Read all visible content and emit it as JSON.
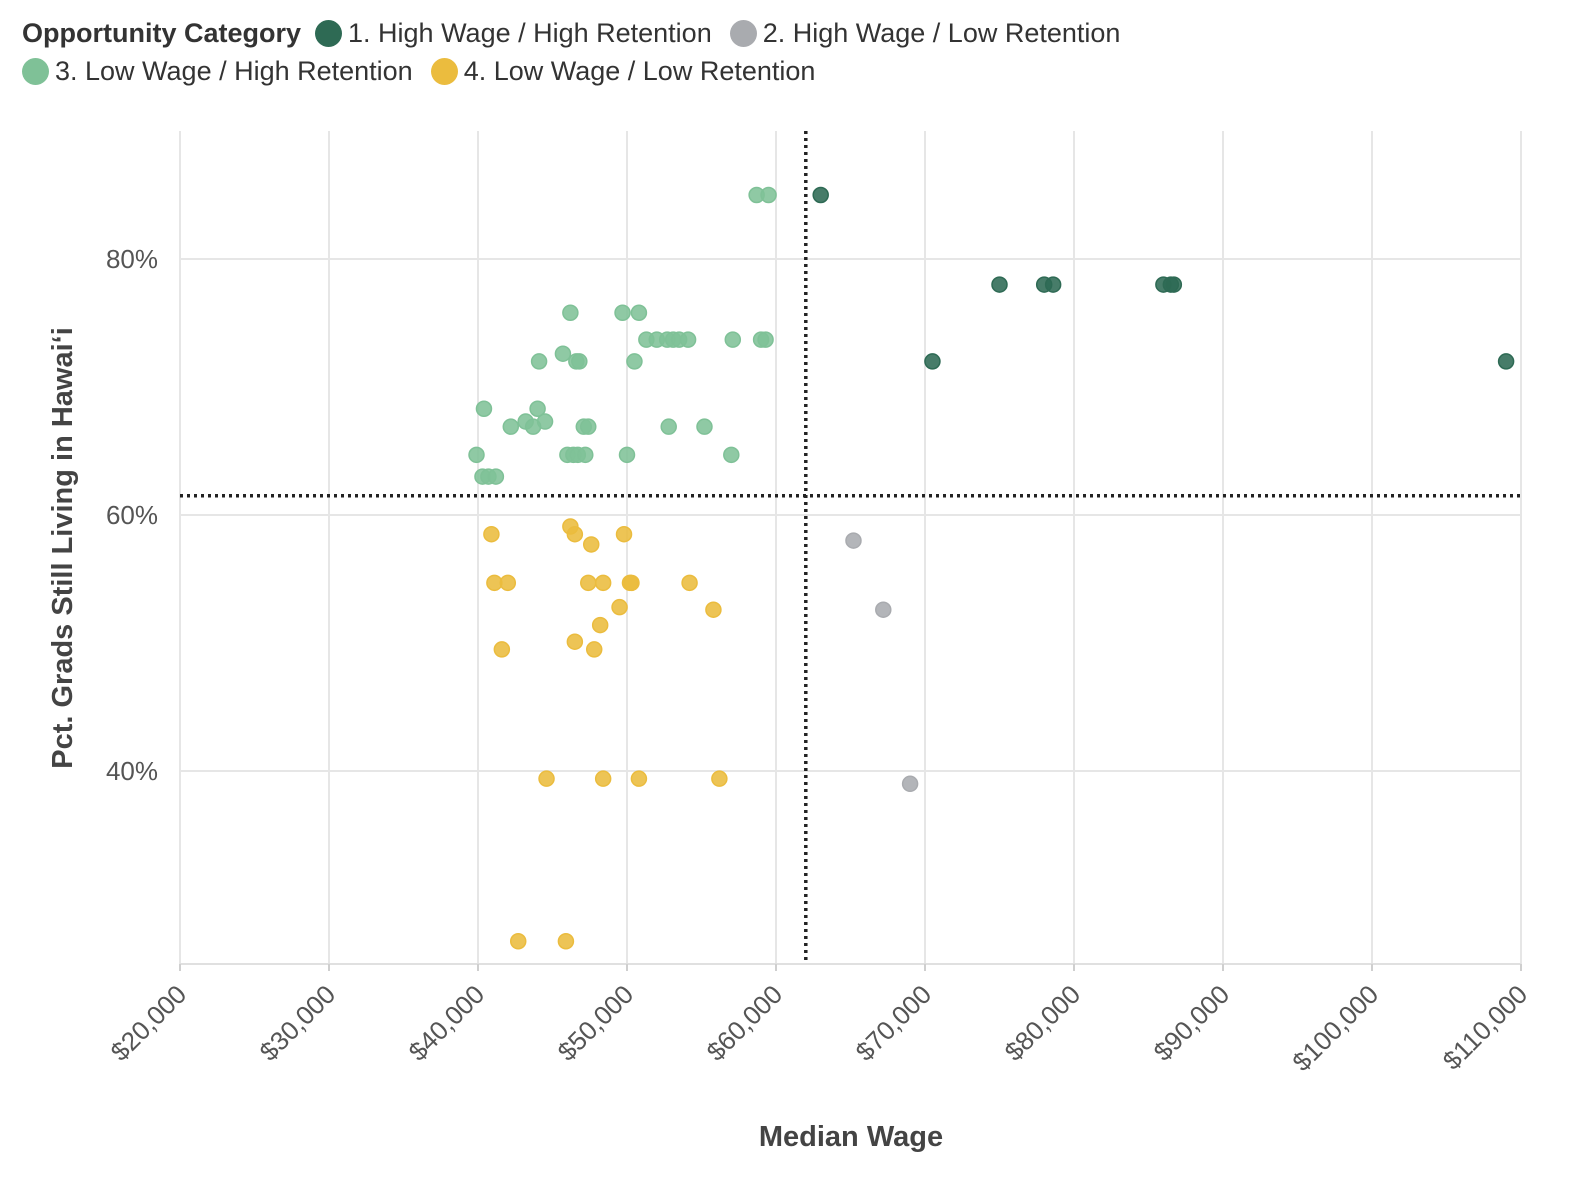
{
  "legend": {
    "title": "Opportunity Category",
    "items": [
      {
        "label": "1. High Wage / High Retention",
        "color": "#2e6a54"
      },
      {
        "label": "2. High Wage / Low Retention",
        "color": "#a9abaf"
      },
      {
        "label": "3. Low Wage / High Retention",
        "color": "#7fc197"
      },
      {
        "label": "4. Low Wage / Low Retention",
        "color": "#ebbc3e"
      }
    ]
  },
  "chart_data": {
    "type": "scatter",
    "xlabel": "Median Wage",
    "ylabel": "Pct. Grads Still Living in Hawaiʻi",
    "xlim": [
      20000,
      110000
    ],
    "ylim": [
      25,
      90
    ],
    "x_ticks": [
      "$20,000",
      "$30,000",
      "$40,000",
      "$50,000",
      "$60,000",
      "$70,000",
      "$80,000",
      "$90,000",
      "$100,000",
      "$110,000"
    ],
    "x_tick_values": [
      20000,
      30000,
      40000,
      50000,
      60000,
      70000,
      80000,
      90000,
      100000,
      110000
    ],
    "y_ticks": [
      "40%",
      "60%",
      "80%"
    ],
    "y_tick_values": [
      40,
      60,
      80
    ],
    "reference_lines": {
      "x": 62000,
      "y": 61.5
    },
    "grid": true,
    "legend_position": "top",
    "series": [
      {
        "name": "1. High Wage / High Retention",
        "color": "#2e6a54",
        "points": [
          [
            63000,
            85
          ],
          [
            75000,
            78
          ],
          [
            78000,
            78
          ],
          [
            78600,
            78
          ],
          [
            86000,
            78
          ],
          [
            86500,
            78
          ],
          [
            86700,
            78
          ],
          [
            70500,
            72
          ],
          [
            109000,
            72
          ]
        ]
      },
      {
        "name": "2. High Wage / Low Retention",
        "color": "#a9abaf",
        "points": [
          [
            65200,
            58
          ],
          [
            67200,
            52.6
          ],
          [
            69000,
            39
          ]
        ]
      },
      {
        "name": "3. Low Wage / High Retention",
        "color": "#7fc197",
        "points": [
          [
            58700,
            85
          ],
          [
            59500,
            85
          ],
          [
            46200,
            75.8
          ],
          [
            49700,
            75.8
          ],
          [
            50800,
            75.8
          ],
          [
            51300,
            73.7
          ],
          [
            52000,
            73.7
          ],
          [
            52700,
            73.7
          ],
          [
            53100,
            73.7
          ],
          [
            53500,
            73.7
          ],
          [
            54100,
            73.7
          ],
          [
            57100,
            73.7
          ],
          [
            59000,
            73.7
          ],
          [
            59300,
            73.7
          ],
          [
            45700,
            72.6
          ],
          [
            44100,
            72
          ],
          [
            46600,
            72
          ],
          [
            46800,
            72
          ],
          [
            50500,
            72
          ],
          [
            40400,
            68.3
          ],
          [
            44000,
            68.3
          ],
          [
            43200,
            67.3
          ],
          [
            44500,
            67.3
          ],
          [
            42200,
            66.9
          ],
          [
            43700,
            66.9
          ],
          [
            47100,
            66.9
          ],
          [
            47400,
            66.9
          ],
          [
            52800,
            66.9
          ],
          [
            55200,
            66.9
          ],
          [
            39900,
            64.7
          ],
          [
            46000,
            64.7
          ],
          [
            46400,
            64.7
          ],
          [
            46700,
            64.7
          ],
          [
            47200,
            64.7
          ],
          [
            50000,
            64.7
          ],
          [
            57000,
            64.7
          ],
          [
            40300,
            63
          ],
          [
            40700,
            63
          ],
          [
            41200,
            63
          ]
        ]
      },
      {
        "name": "4. Low Wage / Low Retention",
        "color": "#ebbc3e",
        "points": [
          [
            46200,
            59.1
          ],
          [
            40900,
            58.5
          ],
          [
            46500,
            58.5
          ],
          [
            49800,
            58.5
          ],
          [
            47600,
            57.7
          ],
          [
            41100,
            54.7
          ],
          [
            42000,
            54.7
          ],
          [
            47400,
            54.7
          ],
          [
            48400,
            54.7
          ],
          [
            50200,
            54.7
          ],
          [
            50300,
            54.7
          ],
          [
            54200,
            54.7
          ],
          [
            49500,
            52.8
          ],
          [
            55800,
            52.6
          ],
          [
            48200,
            51.4
          ],
          [
            46500,
            50.1
          ],
          [
            41600,
            49.5
          ],
          [
            47800,
            49.5
          ],
          [
            44600,
            39.4
          ],
          [
            48400,
            39.4
          ],
          [
            50800,
            39.4
          ],
          [
            56200,
            39.4
          ],
          [
            42700,
            26.7
          ],
          [
            45900,
            26.7
          ]
        ]
      }
    ]
  }
}
